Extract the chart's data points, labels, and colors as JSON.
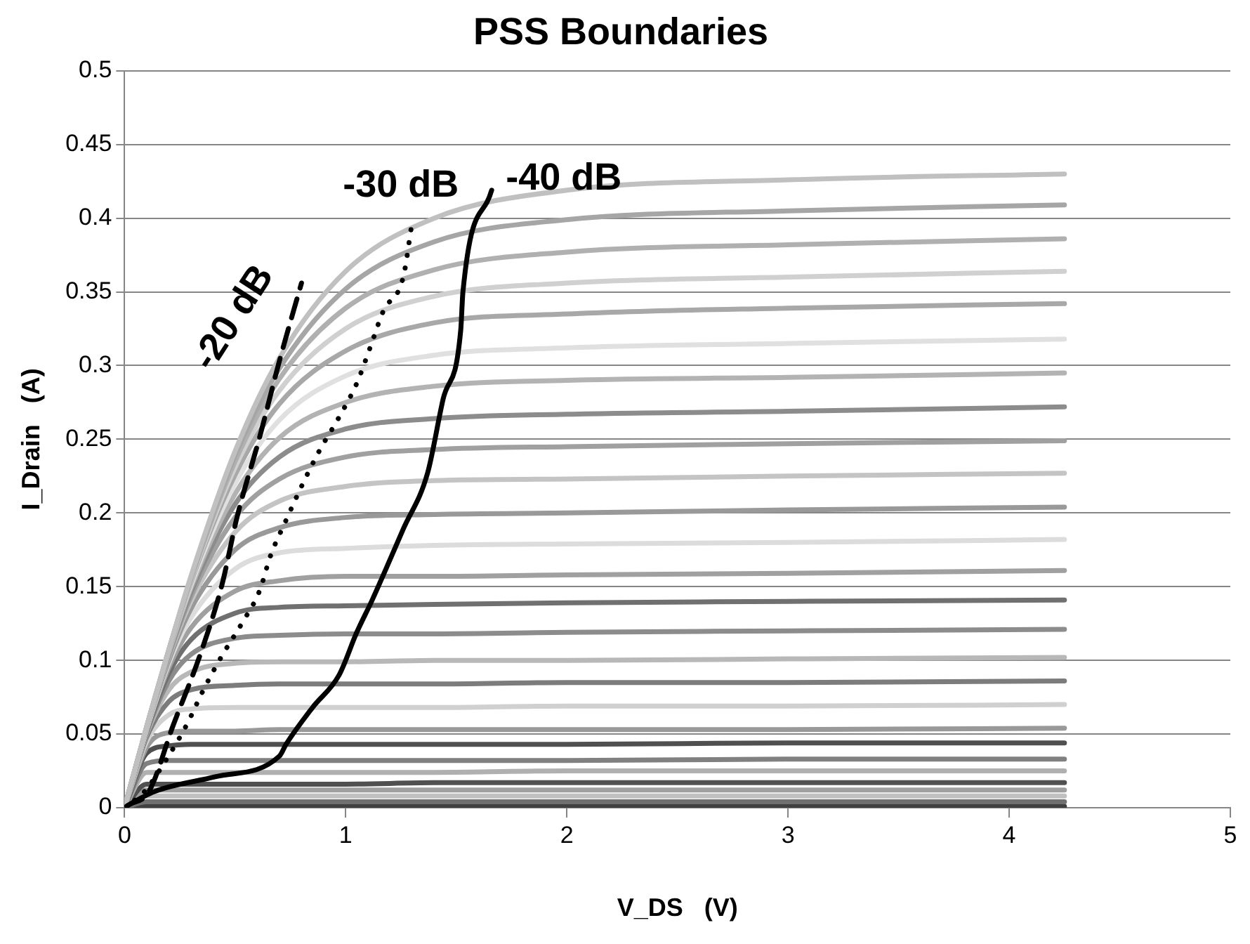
{
  "chart_data": {
    "type": "line",
    "title": "PSS Boundaries",
    "xlabel": "V_DS   (V)",
    "ylabel": "I_Drain   (A)",
    "x": [
      0,
      0.1,
      0.2,
      0.3,
      0.5,
      0.7,
      1,
      1.4,
      2,
      3,
      4.25
    ],
    "xlim": [
      0,
      5
    ],
    "xticks": [
      0,
      1,
      2,
      3,
      4,
      5
    ],
    "ylim": [
      0,
      0.5
    ],
    "yticks": [
      0,
      0.05,
      0.1,
      0.15,
      0.2,
      0.25,
      0.3,
      0.35,
      0.4,
      0.45,
      0.5
    ],
    "grid": "y",
    "series": [
      {
        "color": "#c0c0c0",
        "values": [
          0,
          0.055,
          0.107,
          0.157,
          0.242,
          0.305,
          0.364,
          0.4,
          0.419,
          0.426,
          0.43
        ]
      },
      {
        "color": "#a6a6a6",
        "values": [
          0,
          0.055,
          0.107,
          0.156,
          0.239,
          0.298,
          0.352,
          0.384,
          0.399,
          0.405,
          0.409
        ]
      },
      {
        "color": "#b0b0b0",
        "values": [
          0,
          0.055,
          0.107,
          0.155,
          0.235,
          0.291,
          0.339,
          0.365,
          0.377,
          0.382,
          0.386
        ]
      },
      {
        "color": "#d0d0d0",
        "values": [
          0,
          0.055,
          0.107,
          0.154,
          0.231,
          0.283,
          0.325,
          0.347,
          0.356,
          0.36,
          0.364
        ]
      },
      {
        "color": "#a8a8a8",
        "values": [
          0,
          0.055,
          0.106,
          0.153,
          0.226,
          0.274,
          0.31,
          0.329,
          0.335,
          0.339,
          0.342
        ]
      },
      {
        "color": "#e0e0e0",
        "values": [
          0,
          0.054,
          0.106,
          0.151,
          0.22,
          0.263,
          0.293,
          0.307,
          0.312,
          0.315,
          0.318
        ]
      },
      {
        "color": "#b3b3b3",
        "values": [
          0,
          0.054,
          0.105,
          0.149,
          0.213,
          0.251,
          0.275,
          0.286,
          0.29,
          0.292,
          0.295
        ]
      },
      {
        "color": "#8c8c8c",
        "values": [
          0,
          0.054,
          0.104,
          0.146,
          0.206,
          0.238,
          0.257,
          0.264,
          0.267,
          0.269,
          0.272
        ]
      },
      {
        "color": "#a0a0a0",
        "values": [
          0,
          0.054,
          0.103,
          0.143,
          0.197,
          0.223,
          0.238,
          0.243,
          0.245,
          0.247,
          0.249
        ]
      },
      {
        "color": "#c4c4c4",
        "values": [
          0,
          0.054,
          0.102,
          0.14,
          0.187,
          0.208,
          0.218,
          0.222,
          0.223,
          0.225,
          0.227
        ]
      },
      {
        "color": "#999999",
        "values": [
          0,
          0.054,
          0.1,
          0.135,
          0.175,
          0.19,
          0.197,
          0.199,
          0.2,
          0.202,
          0.204
        ]
      },
      {
        "color": "#dcdcdc",
        "values": [
          0,
          0.053,
          0.098,
          0.129,
          0.162,
          0.173,
          0.176,
          0.178,
          0.179,
          0.18,
          0.182
        ]
      },
      {
        "color": "#a0a0a0",
        "values": [
          0,
          0.053,
          0.095,
          0.122,
          0.147,
          0.154,
          0.157,
          0.157,
          0.158,
          0.159,
          0.161
        ]
      },
      {
        "color": "#707070",
        "values": [
          0,
          0.052,
          0.091,
          0.114,
          0.132,
          0.136,
          0.137,
          0.138,
          0.139,
          0.14,
          0.141
        ]
      },
      {
        "color": "#8c8c8c",
        "values": [
          0,
          0.051,
          0.086,
          0.104,
          0.115,
          0.117,
          0.118,
          0.118,
          0.119,
          0.12,
          0.121
        ]
      },
      {
        "color": "#b8b8b8",
        "values": [
          0,
          0.05,
          0.08,
          0.092,
          0.098,
          0.099,
          0.099,
          0.1,
          0.1,
          0.101,
          0.102
        ]
      },
      {
        "color": "#7c7c7c",
        "values": [
          0,
          0.048,
          0.072,
          0.08,
          0.083,
          0.084,
          0.084,
          0.084,
          0.085,
          0.085,
          0.086
        ]
      },
      {
        "color": "#d0d0d0",
        "values": [
          0,
          0.045,
          0.063,
          0.067,
          0.068,
          0.068,
          0.068,
          0.068,
          0.069,
          0.069,
          0.07
        ]
      },
      {
        "color": "#999999",
        "values": [
          0,
          0.041,
          0.051,
          0.052,
          0.052,
          0.053,
          0.053,
          0.053,
          0.053,
          0.053,
          0.054
        ]
      },
      {
        "color": "#505050",
        "values": [
          0,
          0.037,
          0.042,
          0.043,
          0.043,
          0.043,
          0.043,
          0.043,
          0.043,
          0.044,
          0.044
        ]
      },
      {
        "color": "#808080",
        "values": [
          0,
          0.03,
          0.032,
          0.032,
          0.032,
          0.032,
          0.032,
          0.032,
          0.032,
          0.033,
          0.033
        ]
      },
      {
        "color": "#b0b0b0",
        "values": [
          0,
          0.024,
          0.024,
          0.024,
          0.024,
          0.024,
          0.024,
          0.024,
          0.025,
          0.025,
          0.025
        ]
      },
      {
        "color": "#505050",
        "values": [
          0,
          0.016,
          0.016,
          0.016,
          0.016,
          0.016,
          0.016,
          0.017,
          0.017,
          0.017,
          0.017
        ]
      },
      {
        "color": "#a0a0a0",
        "values": [
          0,
          0.012,
          0.012,
          0.012,
          0.012,
          0.012,
          0.012,
          0.012,
          0.012,
          0.012,
          0.012
        ]
      },
      {
        "color": "#c0c0c0",
        "values": [
          0,
          0.008,
          0.008,
          0.008,
          0.008,
          0.008,
          0.008,
          0.008,
          0.008,
          0.008,
          0.008
        ]
      },
      {
        "color": "#707070",
        "values": [
          0,
          0.004,
          0.004,
          0.004,
          0.004,
          0.004,
          0.004,
          0.004,
          0.004,
          0.004,
          0.004
        ]
      },
      {
        "color": "#404040",
        "values": [
          0,
          0.001,
          0.001,
          0.001,
          0.001,
          0.001,
          0.001,
          0.001,
          0.001,
          0.001,
          0.001
        ]
      },
      {
        "name": "-20 dB",
        "color": "#000000",
        "line_style": "dashed",
        "x": [
          0,
          0.02,
          0.11,
          0.22,
          0.34,
          0.44,
          0.51,
          0.61,
          0.7,
          0.8
        ],
        "values": [
          0,
          0.002,
          0.011,
          0.056,
          0.103,
          0.151,
          0.198,
          0.251,
          0.303,
          0.356
        ]
      },
      {
        "name": "-30 dB",
        "color": "#000000",
        "line_style": "dotted",
        "x": [
          0,
          0.09,
          0.19,
          0.28,
          0.36,
          0.44,
          0.53,
          0.61,
          0.66,
          0.73,
          0.8,
          0.88,
          0.97,
          1.05,
          1.11,
          1.17,
          1.26,
          1.3
        ],
        "values": [
          0,
          0.011,
          0.033,
          0.056,
          0.081,
          0.103,
          0.125,
          0.147,
          0.171,
          0.195,
          0.218,
          0.242,
          0.265,
          0.288,
          0.312,
          0.337,
          0.36,
          0.397
        ]
      },
      {
        "name": "-40 dB",
        "color": "#000000",
        "line_style": "solid",
        "x": [
          0,
          0.02,
          0.135,
          0.41,
          0.7,
          0.73,
          0.85,
          0.97,
          1.05,
          1.12,
          1.26,
          1.37,
          1.44,
          1.52,
          1.53,
          1.66
        ],
        "values": [
          0,
          0.002,
          0.011,
          0.021,
          0.035,
          0.043,
          0.068,
          0.09,
          0.119,
          0.141,
          0.189,
          0.227,
          0.277,
          0.324,
          0.35,
          0.419
        ]
      }
    ]
  }
}
